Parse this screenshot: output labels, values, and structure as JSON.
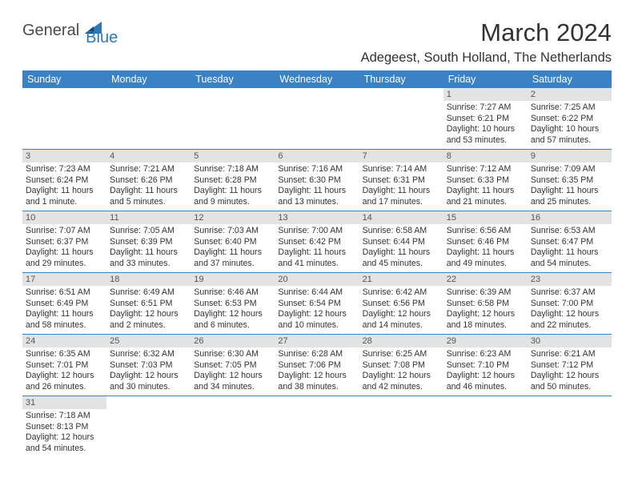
{
  "logo": {
    "part1": "General",
    "part2": "Blue"
  },
  "title": "March 2024",
  "subtitle": "Adegeest, South Holland, The Netherlands",
  "colors": {
    "header_bg": "#3a82c4",
    "header_text": "#ffffff",
    "daynum_bg": "#e3e3e3",
    "rule": "#3a82c4",
    "logo_blue": "#2b78b8",
    "logo_gray": "#4a4a4a",
    "body_text": "#333333"
  },
  "day_headers": [
    "Sunday",
    "Monday",
    "Tuesday",
    "Wednesday",
    "Thursday",
    "Friday",
    "Saturday"
  ],
  "weeks": [
    [
      null,
      null,
      null,
      null,
      null,
      {
        "n": "1",
        "sr": "7:27 AM",
        "ss": "6:21 PM",
        "dl": "10 hours and 53 minutes."
      },
      {
        "n": "2",
        "sr": "7:25 AM",
        "ss": "6:22 PM",
        "dl": "10 hours and 57 minutes."
      }
    ],
    [
      {
        "n": "3",
        "sr": "7:23 AM",
        "ss": "6:24 PM",
        "dl": "11 hours and 1 minute."
      },
      {
        "n": "4",
        "sr": "7:21 AM",
        "ss": "6:26 PM",
        "dl": "11 hours and 5 minutes."
      },
      {
        "n": "5",
        "sr": "7:18 AM",
        "ss": "6:28 PM",
        "dl": "11 hours and 9 minutes."
      },
      {
        "n": "6",
        "sr": "7:16 AM",
        "ss": "6:30 PM",
        "dl": "11 hours and 13 minutes."
      },
      {
        "n": "7",
        "sr": "7:14 AM",
        "ss": "6:31 PM",
        "dl": "11 hours and 17 minutes."
      },
      {
        "n": "8",
        "sr": "7:12 AM",
        "ss": "6:33 PM",
        "dl": "11 hours and 21 minutes."
      },
      {
        "n": "9",
        "sr": "7:09 AM",
        "ss": "6:35 PM",
        "dl": "11 hours and 25 minutes."
      }
    ],
    [
      {
        "n": "10",
        "sr": "7:07 AM",
        "ss": "6:37 PM",
        "dl": "11 hours and 29 minutes."
      },
      {
        "n": "11",
        "sr": "7:05 AM",
        "ss": "6:39 PM",
        "dl": "11 hours and 33 minutes."
      },
      {
        "n": "12",
        "sr": "7:03 AM",
        "ss": "6:40 PM",
        "dl": "11 hours and 37 minutes."
      },
      {
        "n": "13",
        "sr": "7:00 AM",
        "ss": "6:42 PM",
        "dl": "11 hours and 41 minutes."
      },
      {
        "n": "14",
        "sr": "6:58 AM",
        "ss": "6:44 PM",
        "dl": "11 hours and 45 minutes."
      },
      {
        "n": "15",
        "sr": "6:56 AM",
        "ss": "6:46 PM",
        "dl": "11 hours and 49 minutes."
      },
      {
        "n": "16",
        "sr": "6:53 AM",
        "ss": "6:47 PM",
        "dl": "11 hours and 54 minutes."
      }
    ],
    [
      {
        "n": "17",
        "sr": "6:51 AM",
        "ss": "6:49 PM",
        "dl": "11 hours and 58 minutes."
      },
      {
        "n": "18",
        "sr": "6:49 AM",
        "ss": "6:51 PM",
        "dl": "12 hours and 2 minutes."
      },
      {
        "n": "19",
        "sr": "6:46 AM",
        "ss": "6:53 PM",
        "dl": "12 hours and 6 minutes."
      },
      {
        "n": "20",
        "sr": "6:44 AM",
        "ss": "6:54 PM",
        "dl": "12 hours and 10 minutes."
      },
      {
        "n": "21",
        "sr": "6:42 AM",
        "ss": "6:56 PM",
        "dl": "12 hours and 14 minutes."
      },
      {
        "n": "22",
        "sr": "6:39 AM",
        "ss": "6:58 PM",
        "dl": "12 hours and 18 minutes."
      },
      {
        "n": "23",
        "sr": "6:37 AM",
        "ss": "7:00 PM",
        "dl": "12 hours and 22 minutes."
      }
    ],
    [
      {
        "n": "24",
        "sr": "6:35 AM",
        "ss": "7:01 PM",
        "dl": "12 hours and 26 minutes."
      },
      {
        "n": "25",
        "sr": "6:32 AM",
        "ss": "7:03 PM",
        "dl": "12 hours and 30 minutes."
      },
      {
        "n": "26",
        "sr": "6:30 AM",
        "ss": "7:05 PM",
        "dl": "12 hours and 34 minutes."
      },
      {
        "n": "27",
        "sr": "6:28 AM",
        "ss": "7:06 PM",
        "dl": "12 hours and 38 minutes."
      },
      {
        "n": "28",
        "sr": "6:25 AM",
        "ss": "7:08 PM",
        "dl": "12 hours and 42 minutes."
      },
      {
        "n": "29",
        "sr": "6:23 AM",
        "ss": "7:10 PM",
        "dl": "12 hours and 46 minutes."
      },
      {
        "n": "30",
        "sr": "6:21 AM",
        "ss": "7:12 PM",
        "dl": "12 hours and 50 minutes."
      }
    ],
    [
      {
        "n": "31",
        "sr": "7:18 AM",
        "ss": "8:13 PM",
        "dl": "12 hours and 54 minutes."
      },
      null,
      null,
      null,
      null,
      null,
      null
    ]
  ],
  "labels": {
    "sunrise_prefix": "Sunrise: ",
    "sunset_prefix": "Sunset: ",
    "daylight_prefix": "Daylight: "
  }
}
